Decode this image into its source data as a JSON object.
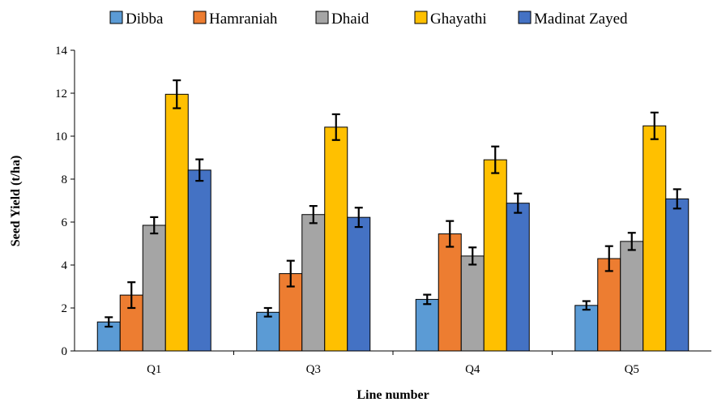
{
  "chart_data": {
    "type": "bar",
    "title": "",
    "xlabel": "Line number",
    "ylabel": "Seed Yield (t/ha)",
    "ylim": [
      0,
      14
    ],
    "yticks": [
      "0",
      "2",
      "4",
      "6",
      "8",
      "10",
      "12",
      "14"
    ],
    "categories": [
      "Q1",
      "Q3",
      "Q4",
      "Q5"
    ],
    "grid": false,
    "legend_position": "top",
    "error_bars": true,
    "series": [
      {
        "name": "Dibba",
        "color": "#5B9BD5",
        "values": [
          1.35,
          1.8,
          2.4,
          2.12
        ],
        "errors": [
          0.22,
          0.2,
          0.22,
          0.2
        ]
      },
      {
        "name": "Hamraniah",
        "color": "#ED7D31",
        "values": [
          2.6,
          3.6,
          5.45,
          4.3
        ],
        "errors": [
          0.6,
          0.6,
          0.6,
          0.58
        ]
      },
      {
        "name": "Dhaid",
        "color": "#A5A5A5",
        "values": [
          5.85,
          6.35,
          4.42,
          5.1
        ],
        "errors": [
          0.38,
          0.4,
          0.4,
          0.4
        ]
      },
      {
        "name": "Ghayathi",
        "color": "#FFC000",
        "values": [
          11.95,
          10.42,
          8.9,
          10.48
        ],
        "errors": [
          0.65,
          0.6,
          0.62,
          0.62
        ]
      },
      {
        "name": "Madinat Zayed",
        "color": "#4472C4",
        "values": [
          8.42,
          6.22,
          6.88,
          7.08
        ],
        "errors": [
          0.5,
          0.45,
          0.45,
          0.45
        ]
      }
    ]
  }
}
